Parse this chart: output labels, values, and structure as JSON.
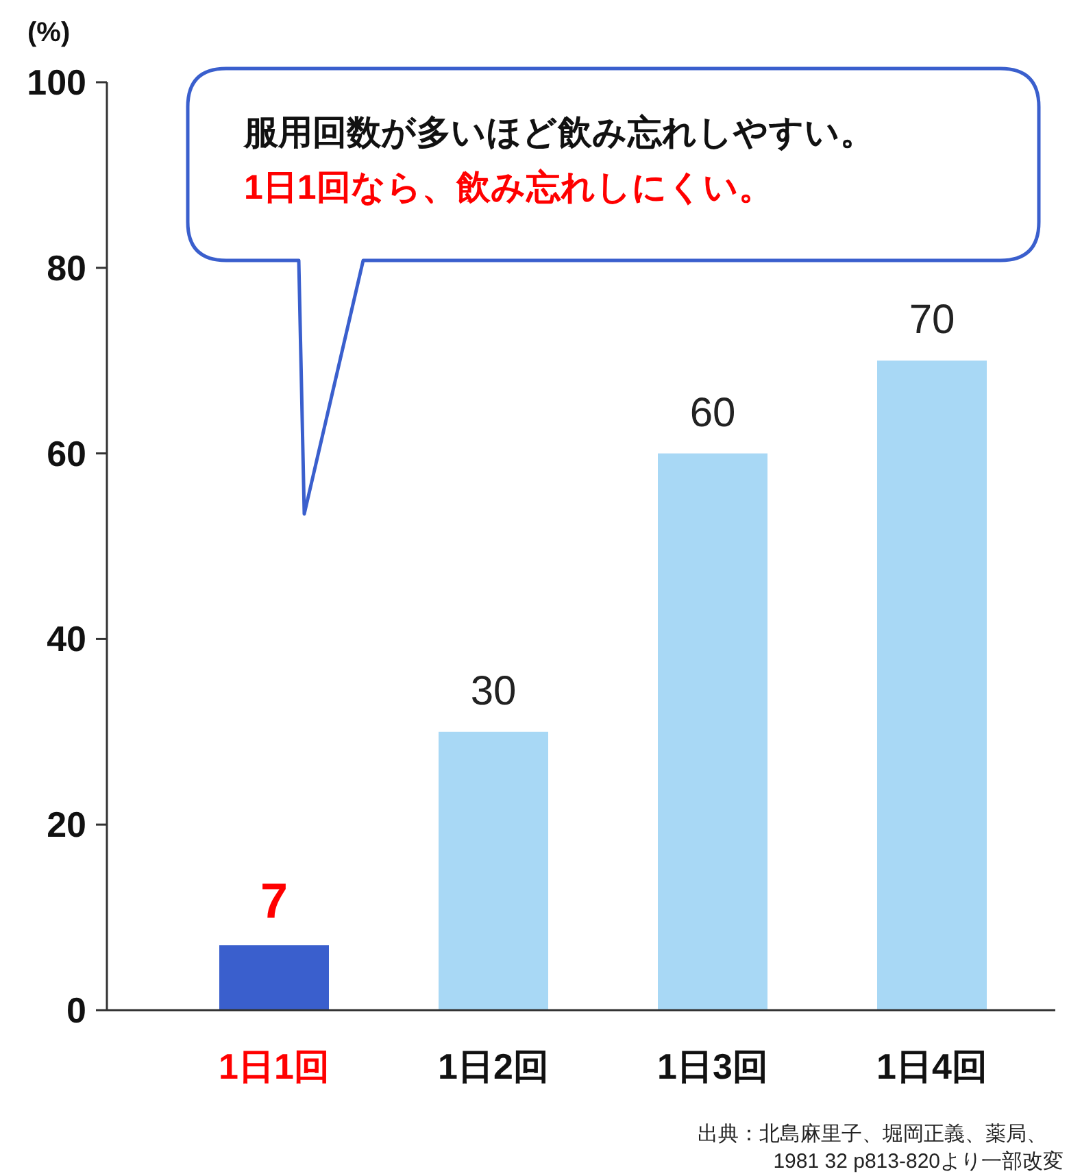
{
  "chart_data": {
    "type": "bar",
    "ylabel": "(%)",
    "categories": [
      "1日1回",
      "1日2回",
      "1日3回",
      "1日4回"
    ],
    "values": [
      7,
      30,
      60,
      70
    ],
    "colors": [
      "#3a5fcd",
      "#a8d8f5",
      "#a8d8f5",
      "#a8d8f5"
    ],
    "data_labels": true,
    "ylim": [
      0,
      100
    ],
    "yticks": [
      0,
      20,
      40,
      60,
      80,
      100
    ],
    "grid": false,
    "annotations": [
      "服用回数が多いほど飲み忘れしやすい。",
      "1日1回なら、飲み忘れしにくい。",
      "出典：北島麻里子、堀岡正義、薬局、",
      "1981 32 p813-820より一部改変"
    ]
  }
}
